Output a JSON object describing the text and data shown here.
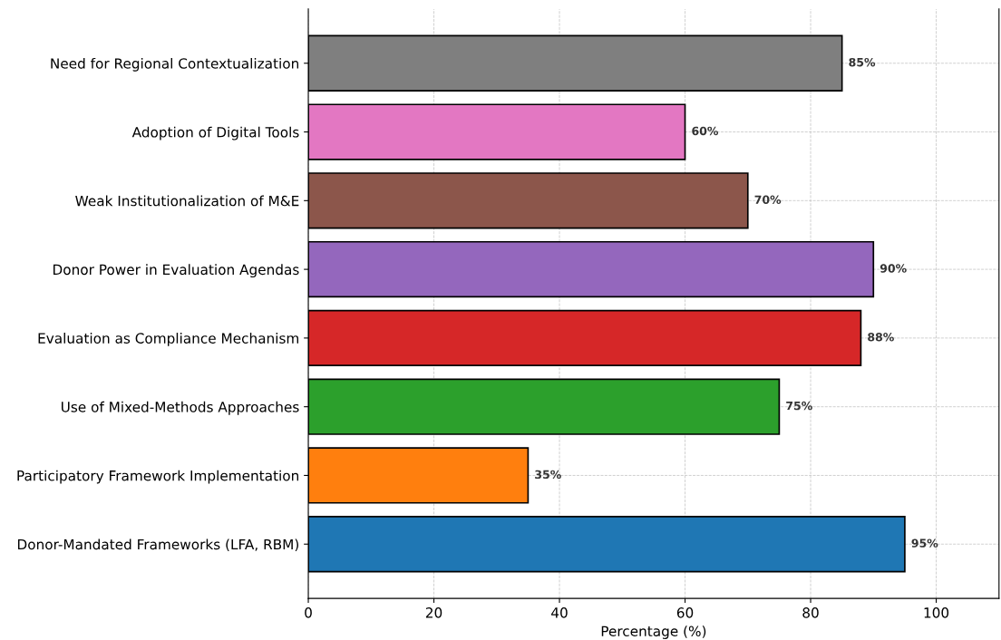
{
  "chart_data": {
    "type": "bar",
    "orientation": "horizontal",
    "xlabel": "Percentage (%)",
    "categories": [
      "Need for Regional Contextualization",
      "Adoption of Digital Tools",
      "Weak Institutionalization of M&E",
      "Donor Power in Evaluation Agendas",
      "Evaluation as Compliance Mechanism",
      "Use of Mixed-Methods Approaches",
      "Participatory Framework Implementation",
      "Donor-Mandated Frameworks (LFA, RBM)"
    ],
    "values": [
      85,
      60,
      70,
      90,
      88,
      75,
      35,
      95
    ],
    "colors": [
      "#7f7f7f",
      "#e377c2",
      "#8c564b",
      "#9467bd",
      "#d62728",
      "#2ca02c",
      "#ff7f0e",
      "#1f77b4"
    ],
    "value_labels": [
      "85%",
      "60%",
      "70%",
      "90%",
      "88%",
      "75%",
      "35%",
      "95%"
    ],
    "xlim": [
      0,
      110
    ],
    "xticks": [
      0,
      20,
      40,
      60,
      80,
      100
    ],
    "grid": true,
    "line_style": "dashed"
  }
}
